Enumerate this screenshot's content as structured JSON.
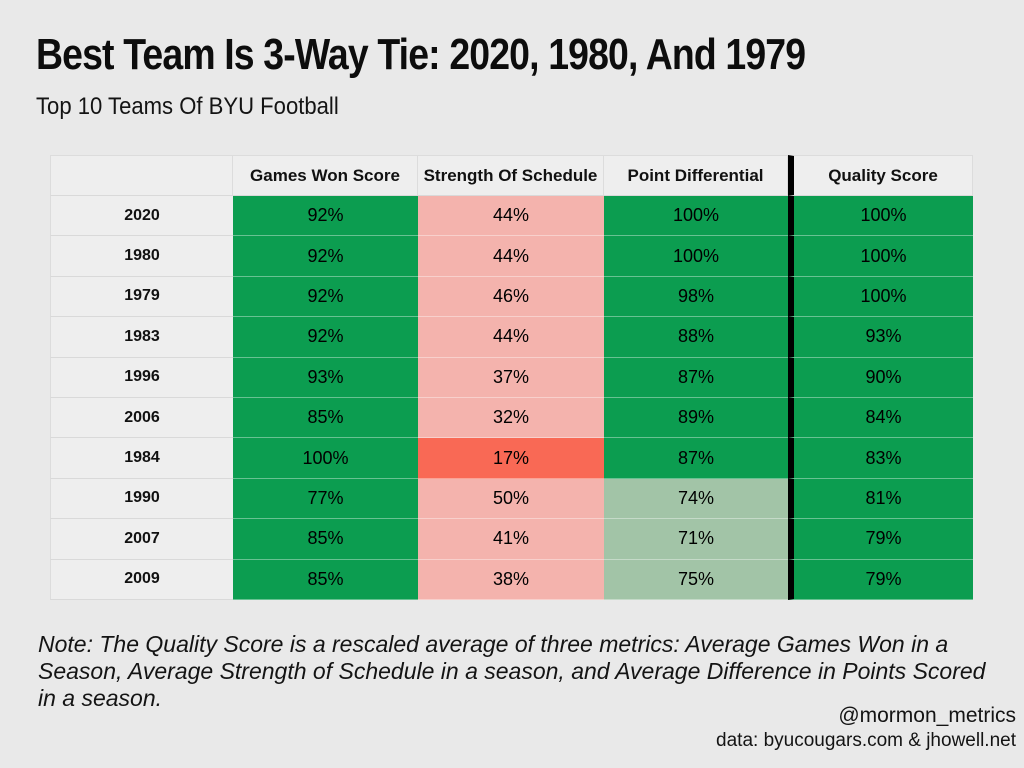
{
  "page": {
    "title": "Best Team Is 3-Way Tie: 2020, 1980, And 1979",
    "subtitle": "Top 10 Teams Of BYU Football",
    "note": "Note: The Quality Score is a rescaled average of three metrics: Average Games Won in a Season, Average Strength of Schedule in a season, and Average Difference in Points Scored in a season.",
    "attribution_handle": "@mormon_metrics",
    "attribution_source": "data: byucougars.com & jhowell.net"
  },
  "colors": {
    "background": "#e9e9e9",
    "header_cell": "#eeeeee",
    "grid_line": "#d9d9d9",
    "divider": "#000000",
    "cell": {
      "green": "#0c9d50",
      "pink": "#f4b3ad",
      "red": "#f96955",
      "light_green": "#a2c4a7"
    }
  },
  "chart_data": {
    "type": "heatmap",
    "title": "Best Team Is 3-Way Tie: 2020, 1980, And 1979",
    "subtitle": "Top 10 Teams Of BYU Football",
    "columns": [
      "",
      "Games Won Score",
      "Strength Of Schedule",
      "Point Differential",
      "Quality Score"
    ],
    "rows": [
      {
        "year": "2020",
        "values": [
          "92%",
          "44%",
          "100%",
          "100%"
        ],
        "cell_colors": [
          "green",
          "pink",
          "green",
          "green"
        ]
      },
      {
        "year": "1980",
        "values": [
          "92%",
          "44%",
          "100%",
          "100%"
        ],
        "cell_colors": [
          "green",
          "pink",
          "green",
          "green"
        ]
      },
      {
        "year": "1979",
        "values": [
          "92%",
          "46%",
          "98%",
          "100%"
        ],
        "cell_colors": [
          "green",
          "pink",
          "green",
          "green"
        ]
      },
      {
        "year": "1983",
        "values": [
          "92%",
          "44%",
          "88%",
          "93%"
        ],
        "cell_colors": [
          "green",
          "pink",
          "green",
          "green"
        ]
      },
      {
        "year": "1996",
        "values": [
          "93%",
          "37%",
          "87%",
          "90%"
        ],
        "cell_colors": [
          "green",
          "pink",
          "green",
          "green"
        ]
      },
      {
        "year": "2006",
        "values": [
          "85%",
          "32%",
          "89%",
          "84%"
        ],
        "cell_colors": [
          "green",
          "pink",
          "green",
          "green"
        ]
      },
      {
        "year": "1984",
        "values": [
          "100%",
          "17%",
          "87%",
          "83%"
        ],
        "cell_colors": [
          "green",
          "red",
          "green",
          "green"
        ]
      },
      {
        "year": "1990",
        "values": [
          "77%",
          "50%",
          "74%",
          "81%"
        ],
        "cell_colors": [
          "green",
          "pink",
          "light_green",
          "green"
        ]
      },
      {
        "year": "2007",
        "values": [
          "85%",
          "41%",
          "71%",
          "79%"
        ],
        "cell_colors": [
          "green",
          "pink",
          "light_green",
          "green"
        ]
      },
      {
        "year": "2009",
        "values": [
          "85%",
          "38%",
          "75%",
          "79%"
        ],
        "cell_colors": [
          "green",
          "pink",
          "light_green",
          "green"
        ]
      }
    ],
    "notes": {
      "quality_score_divider": "thick black vertical rule separates Quality Score column",
      "legend": "green = high score, pink/red = low score, light green = mid score"
    }
  }
}
